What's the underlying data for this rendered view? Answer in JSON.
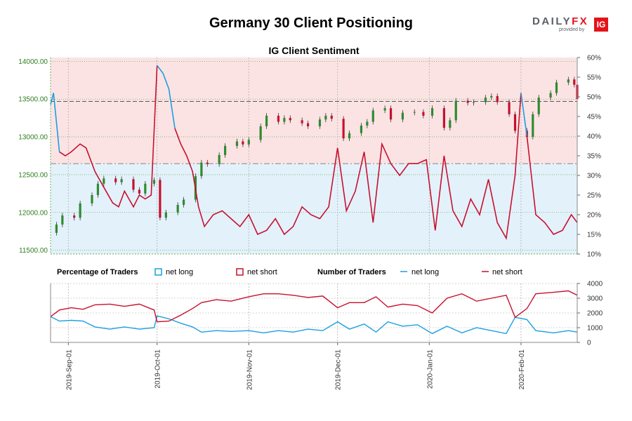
{
  "title": "Germany 30 Client Positioning",
  "logo": {
    "brand_left": "DAILY",
    "brand_right": "FX",
    "provided_by": "provided by",
    "badge": "IG"
  },
  "colors": {
    "net_long": "#1b9fe0",
    "net_short": "#c8102e",
    "short_zone": "#fbe3e4",
    "long_zone": "#e3f1fb",
    "bull_candle": "#2e8b2e",
    "bear_candle": "#c8102e",
    "price_axis": "#2e7d1e"
  },
  "chart_data": [
    {
      "type": "candlestick+line",
      "title": "IG Client Sentiment",
      "price_axis": {
        "range": [
          11450,
          14050
        ],
        "ticks": [
          11500,
          12000,
          12500,
          13000,
          13500,
          14000
        ],
        "tick_labels": [
          "11500.00",
          "12000.00",
          "12500.00",
          "13000.00",
          "13500.00",
          "14000.00"
        ]
      },
      "percent_axis": {
        "range": [
          10,
          60
        ],
        "ticks": [
          10,
          15,
          20,
          25,
          30,
          35,
          40,
          45,
          50,
          55,
          60
        ],
        "tick_labels": [
          "10%",
          "15%",
          "20%",
          "25%",
          "30%",
          "35%",
          "40%",
          "45%",
          "50%",
          "55%",
          "60%"
        ]
      },
      "x_dates": [
        "2019-09-01",
        "2019-10-01",
        "2019-11-01",
        "2019-12-01",
        "2020-01-01",
        "2020-02-01"
      ],
      "x_tick_labels": [
        "2019-Sep-01",
        "2019-Oct-01",
        "2019-Nov-01",
        "2019-Dec-01",
        "2020-Jan-01",
        "2020-Feb-01"
      ],
      "x_range": [
        "2019-08-26",
        "2020-02-20"
      ],
      "reference_lines": {
        "price": 13470,
        "percent": 33
      },
      "price_close": [
        [
          "2019-08-26",
          11730
        ],
        [
          "2019-08-28",
          11840
        ],
        [
          "2019-08-30",
          11960
        ],
        [
          "2019-09-03",
          11930
        ],
        [
          "2019-09-05",
          12120
        ],
        [
          "2019-09-09",
          12230
        ],
        [
          "2019-09-11",
          12380
        ],
        [
          "2019-09-13",
          12450
        ],
        [
          "2019-09-17",
          12400
        ],
        [
          "2019-09-19",
          12440
        ],
        [
          "2019-09-23",
          12300
        ],
        [
          "2019-09-25",
          12250
        ],
        [
          "2019-09-27",
          12380
        ],
        [
          "2019-09-30",
          12430
        ],
        [
          "2019-10-02",
          11930
        ],
        [
          "2019-10-04",
          12000
        ],
        [
          "2019-10-08",
          12100
        ],
        [
          "2019-10-10",
          12170
        ],
        [
          "2019-10-14",
          12480
        ],
        [
          "2019-10-16",
          12660
        ],
        [
          "2019-10-18",
          12640
        ],
        [
          "2019-10-22",
          12760
        ],
        [
          "2019-10-24",
          12880
        ],
        [
          "2019-10-28",
          12940
        ],
        [
          "2019-10-30",
          12900
        ],
        [
          "2019-11-01",
          12960
        ],
        [
          "2019-11-05",
          13140
        ],
        [
          "2019-11-07",
          13280
        ],
        [
          "2019-11-11",
          13200
        ],
        [
          "2019-11-13",
          13250
        ],
        [
          "2019-11-15",
          13220
        ],
        [
          "2019-11-19",
          13180
        ],
        [
          "2019-11-21",
          13140
        ],
        [
          "2019-11-25",
          13230
        ],
        [
          "2019-11-27",
          13280
        ],
        [
          "2019-11-29",
          13240
        ],
        [
          "2019-12-03",
          12980
        ],
        [
          "2019-12-05",
          13050
        ],
        [
          "2019-12-09",
          13150
        ],
        [
          "2019-12-11",
          13200
        ],
        [
          "2019-12-13",
          13350
        ],
        [
          "2019-12-17",
          13380
        ],
        [
          "2019-12-19",
          13230
        ],
        [
          "2019-12-23",
          13320
        ],
        [
          "2019-12-27",
          13330
        ],
        [
          "2019-12-30",
          13280
        ],
        [
          "2020-01-02",
          13380
        ],
        [
          "2020-01-06",
          13120
        ],
        [
          "2020-01-08",
          13220
        ],
        [
          "2020-01-10",
          13480
        ],
        [
          "2020-01-14",
          13450
        ],
        [
          "2020-01-16",
          13460
        ],
        [
          "2020-01-20",
          13520
        ],
        [
          "2020-01-22",
          13540
        ],
        [
          "2020-01-24",
          13460
        ],
        [
          "2020-01-28",
          13300
        ],
        [
          "2020-01-30",
          13080
        ],
        [
          "2020-02-03",
          13000
        ],
        [
          "2020-02-05",
          13300
        ],
        [
          "2020-02-07",
          13520
        ],
        [
          "2020-02-11",
          13580
        ],
        [
          "2020-02-13",
          13720
        ],
        [
          "2020-02-17",
          13760
        ],
        [
          "2020-02-19",
          13690
        ],
        [
          "2020-02-20",
          13500
        ]
      ],
      "net_long_percent": [
        [
          "2019-08-26",
          48
        ],
        [
          "2019-08-27",
          51
        ],
        [
          "2019-08-29",
          36
        ],
        [
          "2019-08-31",
          35
        ],
        [
          "2019-09-02",
          36
        ],
        [
          "2019-09-05",
          38
        ],
        [
          "2019-09-07",
          37
        ],
        [
          "2019-09-10",
          31
        ],
        [
          "2019-09-13",
          27
        ],
        [
          "2019-09-16",
          23
        ],
        [
          "2019-09-18",
          22
        ],
        [
          "2019-09-20",
          26
        ],
        [
          "2019-09-23",
          22
        ],
        [
          "2019-09-25",
          25
        ],
        [
          "2019-09-27",
          24
        ],
        [
          "2019-09-29",
          25
        ],
        [
          "2019-10-01",
          58
        ],
        [
          "2019-10-03",
          56
        ],
        [
          "2019-10-05",
          52
        ],
        [
          "2019-10-07",
          42
        ],
        [
          "2019-10-09",
          38
        ],
        [
          "2019-10-11",
          35
        ],
        [
          "2019-10-13",
          31
        ],
        [
          "2019-10-15",
          22
        ],
        [
          "2019-10-17",
          17
        ],
        [
          "2019-10-20",
          20
        ],
        [
          "2019-10-23",
          21
        ],
        [
          "2019-10-26",
          19
        ],
        [
          "2019-10-29",
          17
        ],
        [
          "2019-11-01",
          20
        ],
        [
          "2019-11-04",
          15
        ],
        [
          "2019-11-07",
          16
        ],
        [
          "2019-11-10",
          19
        ],
        [
          "2019-11-13",
          15
        ],
        [
          "2019-11-16",
          17
        ],
        [
          "2019-11-19",
          22
        ],
        [
          "2019-11-22",
          20
        ],
        [
          "2019-11-25",
          19
        ],
        [
          "2019-11-28",
          22
        ],
        [
          "2019-12-01",
          37
        ],
        [
          "2019-12-04",
          21
        ],
        [
          "2019-12-07",
          26
        ],
        [
          "2019-12-10",
          36
        ],
        [
          "2019-12-13",
          18
        ],
        [
          "2019-12-16",
          38
        ],
        [
          "2019-12-19",
          33
        ],
        [
          "2019-12-22",
          30
        ],
        [
          "2019-12-25",
          33
        ],
        [
          "2019-12-28",
          33
        ],
        [
          "2019-12-31",
          34
        ],
        [
          "2020-01-03",
          16
        ],
        [
          "2020-01-06",
          35
        ],
        [
          "2020-01-09",
          21
        ],
        [
          "2020-01-12",
          17
        ],
        [
          "2020-01-15",
          24
        ],
        [
          "2020-01-18",
          20
        ],
        [
          "2020-01-21",
          29
        ],
        [
          "2020-01-24",
          18
        ],
        [
          "2020-01-27",
          14
        ],
        [
          "2020-01-30",
          30
        ],
        [
          "2020-02-01",
          51
        ],
        [
          "2020-02-03",
          40
        ],
        [
          "2020-02-06",
          20
        ],
        [
          "2020-02-09",
          18
        ],
        [
          "2020-02-12",
          15
        ],
        [
          "2020-02-15",
          16
        ],
        [
          "2020-02-18",
          20
        ],
        [
          "2020-02-20",
          18
        ]
      ]
    },
    {
      "type": "line",
      "axis": {
        "range": [
          0,
          4000
        ],
        "ticks": [
          0,
          1000,
          2000,
          3000,
          4000
        ]
      },
      "series": [
        {
          "name": "net long",
          "values": [
            [
              "2019-08-26",
              1750
            ],
            [
              "2019-08-29",
              1450
            ],
            [
              "2019-09-02",
              1500
            ],
            [
              "2019-09-06",
              1450
            ],
            [
              "2019-09-10",
              1050
            ],
            [
              "2019-09-15",
              900
            ],
            [
              "2019-09-20",
              1050
            ],
            [
              "2019-09-25",
              900
            ],
            [
              "2019-09-30",
              1000
            ],
            [
              "2019-10-01",
              1800
            ],
            [
              "2019-10-05",
              1600
            ],
            [
              "2019-10-09",
              1300
            ],
            [
              "2019-10-13",
              1050
            ],
            [
              "2019-10-16",
              700
            ],
            [
              "2019-10-21",
              800
            ],
            [
              "2019-10-26",
              750
            ],
            [
              "2019-11-01",
              800
            ],
            [
              "2019-11-06",
              650
            ],
            [
              "2019-11-11",
              800
            ],
            [
              "2019-11-16",
              700
            ],
            [
              "2019-11-21",
              900
            ],
            [
              "2019-11-26",
              800
            ],
            [
              "2019-12-01",
              1400
            ],
            [
              "2019-12-05",
              900
            ],
            [
              "2019-12-10",
              1250
            ],
            [
              "2019-12-14",
              700
            ],
            [
              "2019-12-18",
              1400
            ],
            [
              "2019-12-23",
              1100
            ],
            [
              "2019-12-28",
              1200
            ],
            [
              "2020-01-02",
              600
            ],
            [
              "2020-01-07",
              1100
            ],
            [
              "2020-01-12",
              650
            ],
            [
              "2020-01-17",
              1000
            ],
            [
              "2020-01-22",
              800
            ],
            [
              "2020-01-27",
              600
            ],
            [
              "2020-01-30",
              1700
            ],
            [
              "2020-02-03",
              1550
            ],
            [
              "2020-02-06",
              800
            ],
            [
              "2020-02-12",
              650
            ],
            [
              "2020-02-17",
              800
            ],
            [
              "2020-02-20",
              700
            ]
          ]
        },
        {
          "name": "net short",
          "values": [
            [
              "2019-08-26",
              1750
            ],
            [
              "2019-08-29",
              2200
            ],
            [
              "2019-09-02",
              2350
            ],
            [
              "2019-09-06",
              2250
            ],
            [
              "2019-09-10",
              2550
            ],
            [
              "2019-09-15",
              2600
            ],
            [
              "2019-09-20",
              2450
            ],
            [
              "2019-09-25",
              2600
            ],
            [
              "2019-09-30",
              2200
            ],
            [
              "2019-10-01",
              1400
            ],
            [
              "2019-10-05",
              1450
            ],
            [
              "2019-10-09",
              1850
            ],
            [
              "2019-10-13",
              2300
            ],
            [
              "2019-10-16",
              2700
            ],
            [
              "2019-10-21",
              2900
            ],
            [
              "2019-10-26",
              2800
            ],
            [
              "2019-11-01",
              3100
            ],
            [
              "2019-11-06",
              3300
            ],
            [
              "2019-11-11",
              3300
            ],
            [
              "2019-11-16",
              3200
            ],
            [
              "2019-11-21",
              3050
            ],
            [
              "2019-11-26",
              3150
            ],
            [
              "2019-12-01",
              2350
            ],
            [
              "2019-12-05",
              2700
            ],
            [
              "2019-12-10",
              2700
            ],
            [
              "2019-12-14",
              3100
            ],
            [
              "2019-12-18",
              2400
            ],
            [
              "2019-12-23",
              2600
            ],
            [
              "2019-12-28",
              2500
            ],
            [
              "2020-01-02",
              2000
            ],
            [
              "2020-01-07",
              3000
            ],
            [
              "2020-01-12",
              3300
            ],
            [
              "2020-01-17",
              2800
            ],
            [
              "2020-01-22",
              3000
            ],
            [
              "2020-01-27",
              3200
            ],
            [
              "2020-01-30",
              1700
            ],
            [
              "2020-02-03",
              2300
            ],
            [
              "2020-02-06",
              3300
            ],
            [
              "2020-02-12",
              3400
            ],
            [
              "2020-02-17",
              3500
            ],
            [
              "2020-02-20",
              3200
            ]
          ]
        }
      ]
    }
  ],
  "legend": {
    "percentage_title": "Percentage of Traders",
    "number_title": "Number of Traders",
    "net_long": "net long",
    "net_short": "net short"
  }
}
